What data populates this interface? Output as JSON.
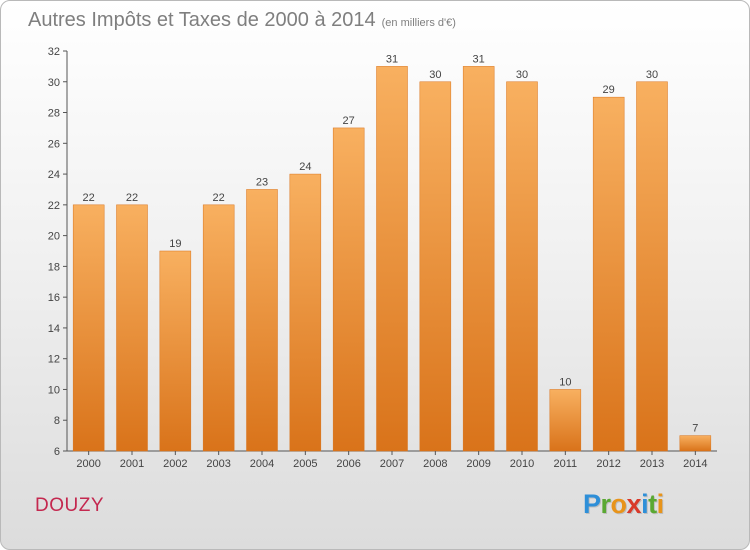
{
  "title": "Autres Impôts et Taxes de 2000 à 2014",
  "subtitle": "(en milliers d'€)",
  "town": "DOUZY",
  "logo": {
    "letters": [
      "P",
      "r",
      "o",
      "x",
      "i",
      "t",
      "i"
    ],
    "colors": [
      "#2e8fd8",
      "#5aa832",
      "#e8941a",
      "#d93a2a",
      "#2e8fd8",
      "#5aa832",
      "#e8941a"
    ]
  },
  "colors": {
    "bar": "#f08d2e",
    "bar_light": "#f8b060",
    "bar_dark": "#d9731a",
    "axis": "#555555",
    "grid": "#d4d4d4"
  },
  "chart_data": {
    "type": "bar",
    "title": "Autres Impôts et Taxes de 2000 à 2014",
    "subtitle": "(en milliers d'€)",
    "xlabel": "",
    "ylabel": "",
    "categories": [
      "2000",
      "2001",
      "2002",
      "2003",
      "2004",
      "2005",
      "2006",
      "2007",
      "2008",
      "2009",
      "2010",
      "2011",
      "2012",
      "2013",
      "2014"
    ],
    "values": [
      22,
      22,
      19,
      22,
      23,
      24,
      27,
      31,
      30,
      31,
      30,
      10,
      29,
      30,
      7
    ],
    "ylim": [
      6,
      32
    ],
    "yticks": [
      6,
      8,
      10,
      12,
      14,
      16,
      18,
      20,
      22,
      24,
      26,
      28,
      30,
      32
    ],
    "grid": false,
    "legend": "none"
  }
}
